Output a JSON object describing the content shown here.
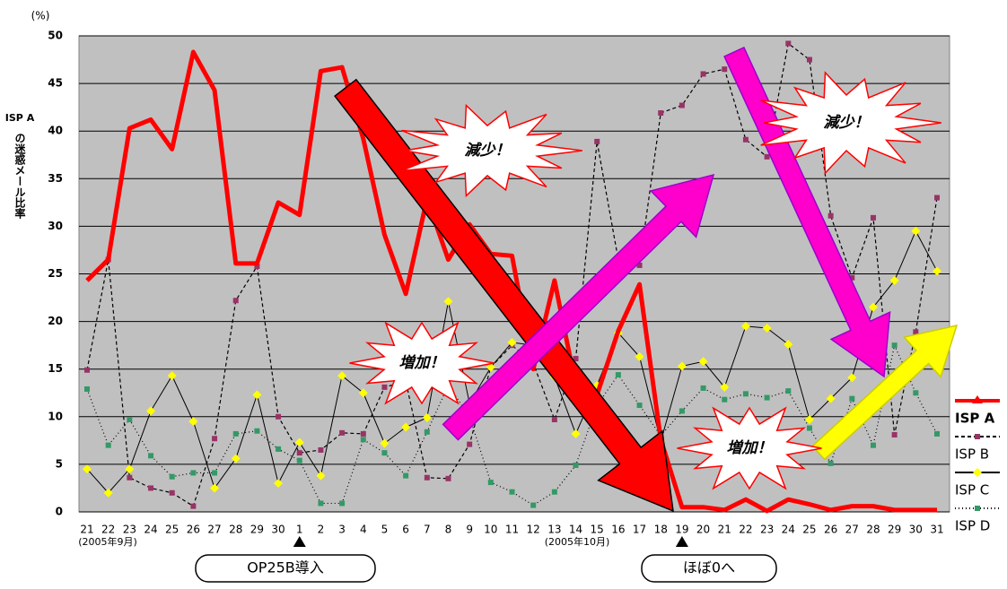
{
  "chart_data": {
    "type": "line",
    "unit_label": "(%)",
    "y_label": [
      "ISP A",
      "の迷惑メール比率"
    ],
    "categories": [
      "21",
      "22",
      "23",
      "24",
      "25",
      "26",
      "27",
      "28",
      "29",
      "30",
      "1",
      "2",
      "3",
      "4",
      "5",
      "6",
      "7",
      "8",
      "9",
      "10",
      "11",
      "12",
      "13",
      "14",
      "15",
      "16",
      "17",
      "18",
      "19",
      "20",
      "21",
      "22",
      "23",
      "24",
      "25",
      "26",
      "27",
      "28",
      "29",
      "30",
      "31"
    ],
    "period_labels": [
      "(2005年9月)",
      "(2005年10月)"
    ],
    "ylim": [
      0,
      50
    ],
    "yticks": [
      0,
      5,
      10,
      15,
      20,
      25,
      30,
      35,
      40,
      45,
      50
    ],
    "grid": true,
    "series": [
      {
        "name": "ISP A",
        "color": "#ff0000",
        "values": [
          24.3,
          26.5,
          40.3,
          41.2,
          38.1,
          48.3,
          44.3,
          26.1,
          26.1,
          32.5,
          31.2,
          46.3,
          46.7,
          39.2,
          29.1,
          22.9,
          32.9,
          26.5,
          30.2,
          27.1,
          26.9,
          15,
          24.3,
          13.3,
          12.3,
          19,
          23.9,
          7.6,
          0.5,
          0.5,
          0.2,
          1.3,
          0.1,
          1.3,
          0.8,
          0.2,
          0.6,
          0.6,
          0.2,
          0.2,
          0.2
        ]
      },
      {
        "name": "ISP B",
        "color": "#993366",
        "values": [
          14.9,
          26.5,
          3.6,
          2.5,
          2,
          0.6,
          7.7,
          22.2,
          25.8,
          10,
          6.2,
          6.5,
          8.3,
          8.2,
          13.1,
          13.7,
          3.6,
          3.5,
          7.1,
          15.2,
          17.5,
          15.6,
          9.7,
          16.1,
          38.9,
          26.5,
          25.9,
          41.9,
          42.7,
          46,
          46.5,
          39.1,
          37.3,
          49.2,
          47.5,
          31.1,
          24.6,
          30.9,
          8.1,
          18.9,
          33
        ]
      },
      {
        "name": "ISP C",
        "color": "#ffff00",
        "values": [
          4.5,
          2,
          4.5,
          10.6,
          14.3,
          9.5,
          2.5,
          5.6,
          12.3,
          3,
          7.3,
          3.8,
          14.3,
          12.5,
          7.2,
          8.9,
          9.9,
          22.1,
          11.4,
          15.2,
          17.8,
          17.5,
          14.2,
          8.2,
          13.3,
          18.8,
          16.3,
          7.4,
          15.3,
          15.8,
          13.1,
          19.5,
          19.3,
          17.6,
          9.7,
          11.9,
          14.1,
          21.5,
          24.3,
          29.5,
          25.3
        ]
      },
      {
        "name": "ISP D",
        "color": "#339966",
        "values": [
          12.9,
          7,
          9.7,
          5.9,
          3.7,
          4.1,
          4.1,
          8.2,
          8.5,
          6.6,
          5.4,
          0.9,
          0.9,
          7.6,
          6.2,
          3.8,
          8.4,
          13.3,
          10,
          3.1,
          2.1,
          0.7,
          2.1,
          4.9,
          11.2,
          14.4,
          11.2,
          8,
          10.6,
          13,
          11.8,
          12.4,
          12,
          12.7,
          8.8,
          5.1,
          11.9,
          7,
          17.5,
          12.5,
          8.2
        ]
      }
    ],
    "annotations": [
      "減少！",
      "増加！",
      "減少！",
      "増加！",
      "OP25B導入",
      "ほぼ0へ"
    ]
  }
}
